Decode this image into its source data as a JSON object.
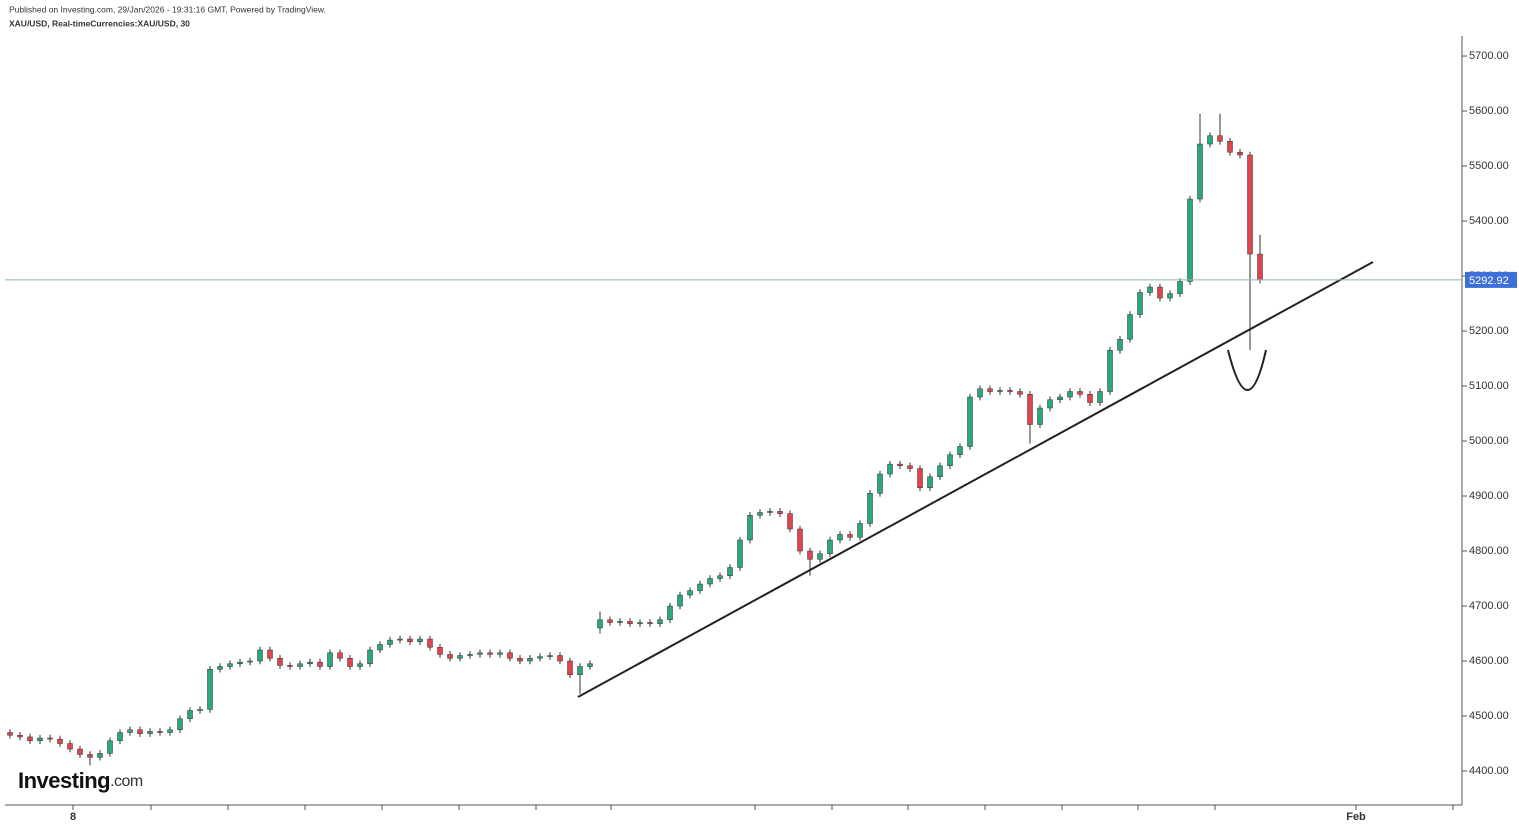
{
  "chart_data": {
    "type": "candlestick",
    "subtitle": "Published on Investing.com, 29/Jan/2026 - 19:31:16 GMT, Powered by TradingView.",
    "title": "XAU/USD, Real-timeCurrencies:XAU/USD, 30",
    "logo": {
      "name": "Investing",
      "suffix": ".com"
    },
    "up_color": "#2aa77b",
    "down_color": "#e0454f",
    "wick_color": "#333333",
    "last_price": 5292.92,
    "last_price_color": "#3d6fd6",
    "xlim": [
      0,
      145.7
    ],
    "xticks": [
      {
        "value": 6.8,
        "label": "8"
      },
      {
        "value": 135.1,
        "label": "Feb"
      }
    ],
    "ylim": [
      4338.2,
      5736.4
    ],
    "yticks": [
      {
        "value": 4400,
        "label": "4400.00"
      },
      {
        "value": 4500,
        "label": "4500.00"
      },
      {
        "value": 4600,
        "label": "4600.00"
      },
      {
        "value": 4700,
        "label": "4700.00"
      },
      {
        "value": 4800,
        "label": "4800.00"
      },
      {
        "value": 4900,
        "label": "4900.00"
      },
      {
        "value": 5000,
        "label": "5000.00"
      },
      {
        "value": 5100,
        "label": "5100.00"
      },
      {
        "value": 5200,
        "label": "5200.00"
      },
      {
        "value": 5300,
        "label": "5300.00"
      },
      {
        "value": 5400,
        "label": "5400.00"
      },
      {
        "value": 5500,
        "label": "5500.00"
      },
      {
        "value": 5600,
        "label": "5600.00"
      },
      {
        "value": 5700,
        "label": "5700.00"
      }
    ],
    "open": [
      4470,
      4465,
      4462,
      4455,
      4460,
      4458,
      4450,
      4440,
      4430,
      4425,
      4432,
      4455,
      4470,
      4475,
      4468,
      4472,
      4470,
      4475,
      4495,
      4510,
      4512,
      4585,
      4590,
      4595,
      4598,
      4600,
      4620,
      4605,
      4592,
      4590,
      4595,
      4598,
      4590,
      4615,
      4605,
      4590,
      4595,
      4620,
      4630,
      4638,
      4640,
      4635,
      4640,
      4625,
      4612,
      4605,
      4610,
      4612,
      4615,
      4612,
      4615,
      4605,
      4600,
      4605,
      4608,
      4610,
      4600,
      4575,
      4590,
      4660,
      4675,
      4670,
      4672,
      4668,
      4670,
      4668,
      4675,
      4700,
      4720,
      4728,
      4740,
      4750,
      4755,
      4770,
      4820,
      4865,
      4870,
      4872,
      4868,
      4840,
      4800,
      4785,
      4795,
      4820,
      4830,
      4825,
      4850,
      4905,
      4940,
      4958,
      4955,
      4950,
      4915,
      4935,
      4955,
      4975,
      4990,
      5080,
      5095,
      5090,
      5092,
      5090,
      5085,
      5030,
      5060,
      5075,
      5080,
      5090,
      5085,
      5070,
      5090,
      5165,
      5185,
      5230,
      5270,
      5280,
      5260,
      5268,
      5290,
      5440,
      5540,
      5555,
      5545,
      5525,
      5520,
      5340
    ],
    "high": [
      4476,
      4471,
      4468,
      4466,
      4466,
      4464,
      4456,
      4446,
      4436,
      4438,
      4461,
      4476,
      4481,
      4481,
      4478,
      4478,
      4481,
      4501,
      4516,
      4518,
      4591,
      4596,
      4601,
      4604,
      4606,
      4626,
      4626,
      4611,
      4598,
      4601,
      4604,
      4604,
      4621,
      4621,
      4611,
      4601,
      4626,
      4636,
      4644,
      4646,
      4646,
      4646,
      4646,
      4631,
      4618,
      4616,
      4618,
      4621,
      4621,
      4621,
      4621,
      4611,
      4611,
      4614,
      4616,
      4616,
      4606,
      4596,
      4601,
      4690,
      4681,
      4678,
      4678,
      4676,
      4676,
      4681,
      4706,
      4726,
      4734,
      4746,
      4756,
      4761,
      4776,
      4826,
      4871,
      4876,
      4878,
      4878,
      4874,
      4846,
      4806,
      4801,
      4826,
      4836,
      4836,
      4856,
      4911,
      4946,
      4964,
      4964,
      4961,
      4956,
      4941,
      4961,
      4981,
      4996,
      5086,
      5101,
      5101,
      5098,
      5098,
      5096,
      5091,
      5066,
      5081,
      5086,
      5096,
      5096,
      5091,
      5096,
      5171,
      5191,
      5236,
      5276,
      5286,
      5286,
      5274,
      5296,
      5446,
      5595,
      5561,
      5595,
      5551,
      5531,
      5526,
      5375
    ],
    "low": [
      4459,
      4456,
      4449,
      4449,
      4452,
      4444,
      4434,
      4424,
      4410,
      4419,
      4426,
      4449,
      4464,
      4462,
      4462,
      4464,
      4464,
      4469,
      4489,
      4504,
      4506,
      4579,
      4584,
      4589,
      4592,
      4594,
      4599,
      4586,
      4584,
      4584,
      4589,
      4584,
      4584,
      4599,
      4584,
      4584,
      4589,
      4614,
      4624,
      4632,
      4629,
      4629,
      4619,
      4606,
      4599,
      4599,
      4604,
      4606,
      4606,
      4606,
      4599,
      4594,
      4594,
      4599,
      4602,
      4594,
      4569,
      4540,
      4584,
      4650,
      4664,
      4664,
      4662,
      4662,
      4662,
      4662,
      4669,
      4694,
      4714,
      4722,
      4734,
      4744,
      4749,
      4764,
      4814,
      4859,
      4864,
      4862,
      4834,
      4794,
      4755,
      4779,
      4789,
      4814,
      4819,
      4819,
      4844,
      4899,
      4934,
      4949,
      4944,
      4909,
      4909,
      4929,
      4949,
      4969,
      4984,
      5074,
      5084,
      5084,
      5084,
      5079,
      4995,
      5024,
      5054,
      5069,
      5074,
      5079,
      5064,
      5064,
      5084,
      5159,
      5179,
      5224,
      5264,
      5254,
      5254,
      5262,
      5284,
      5434,
      5534,
      5539,
      5519,
      5514,
      5165,
      5287
    ],
    "close": [
      4465,
      4462,
      4455,
      4460,
      4458,
      4450,
      4440,
      4430,
      4425,
      4432,
      4455,
      4470,
      4475,
      4468,
      4472,
      4470,
      4475,
      4495,
      4510,
      4512,
      4585,
      4590,
      4595,
      4598,
      4600,
      4620,
      4605,
      4592,
      4590,
      4595,
      4598,
      4590,
      4615,
      4605,
      4590,
      4595,
      4620,
      4630,
      4638,
      4640,
      4635,
      4640,
      4625,
      4612,
      4605,
      4610,
      4612,
      4615,
      4612,
      4615,
      4605,
      4600,
      4605,
      4608,
      4610,
      4600,
      4575,
      4590,
      4595,
      4675,
      4670,
      4672,
      4668,
      4670,
      4668,
      4675,
      4700,
      4720,
      4728,
      4740,
      4750,
      4755,
      4770,
      4820,
      4865,
      4870,
      4872,
      4868,
      4840,
      4800,
      4785,
      4795,
      4820,
      4830,
      4825,
      4850,
      4905,
      4940,
      4958,
      4955,
      4950,
      4915,
      4935,
      4955,
      4975,
      4990,
      5080,
      5095,
      5090,
      5092,
      5090,
      5085,
      5030,
      5060,
      5075,
      5080,
      5090,
      5085,
      5070,
      5090,
      5165,
      5185,
      5230,
      5270,
      5280,
      5260,
      5268,
      5290,
      5440,
      5540,
      5555,
      5545,
      5525,
      5520,
      5340,
      5293
    ]
  }
}
